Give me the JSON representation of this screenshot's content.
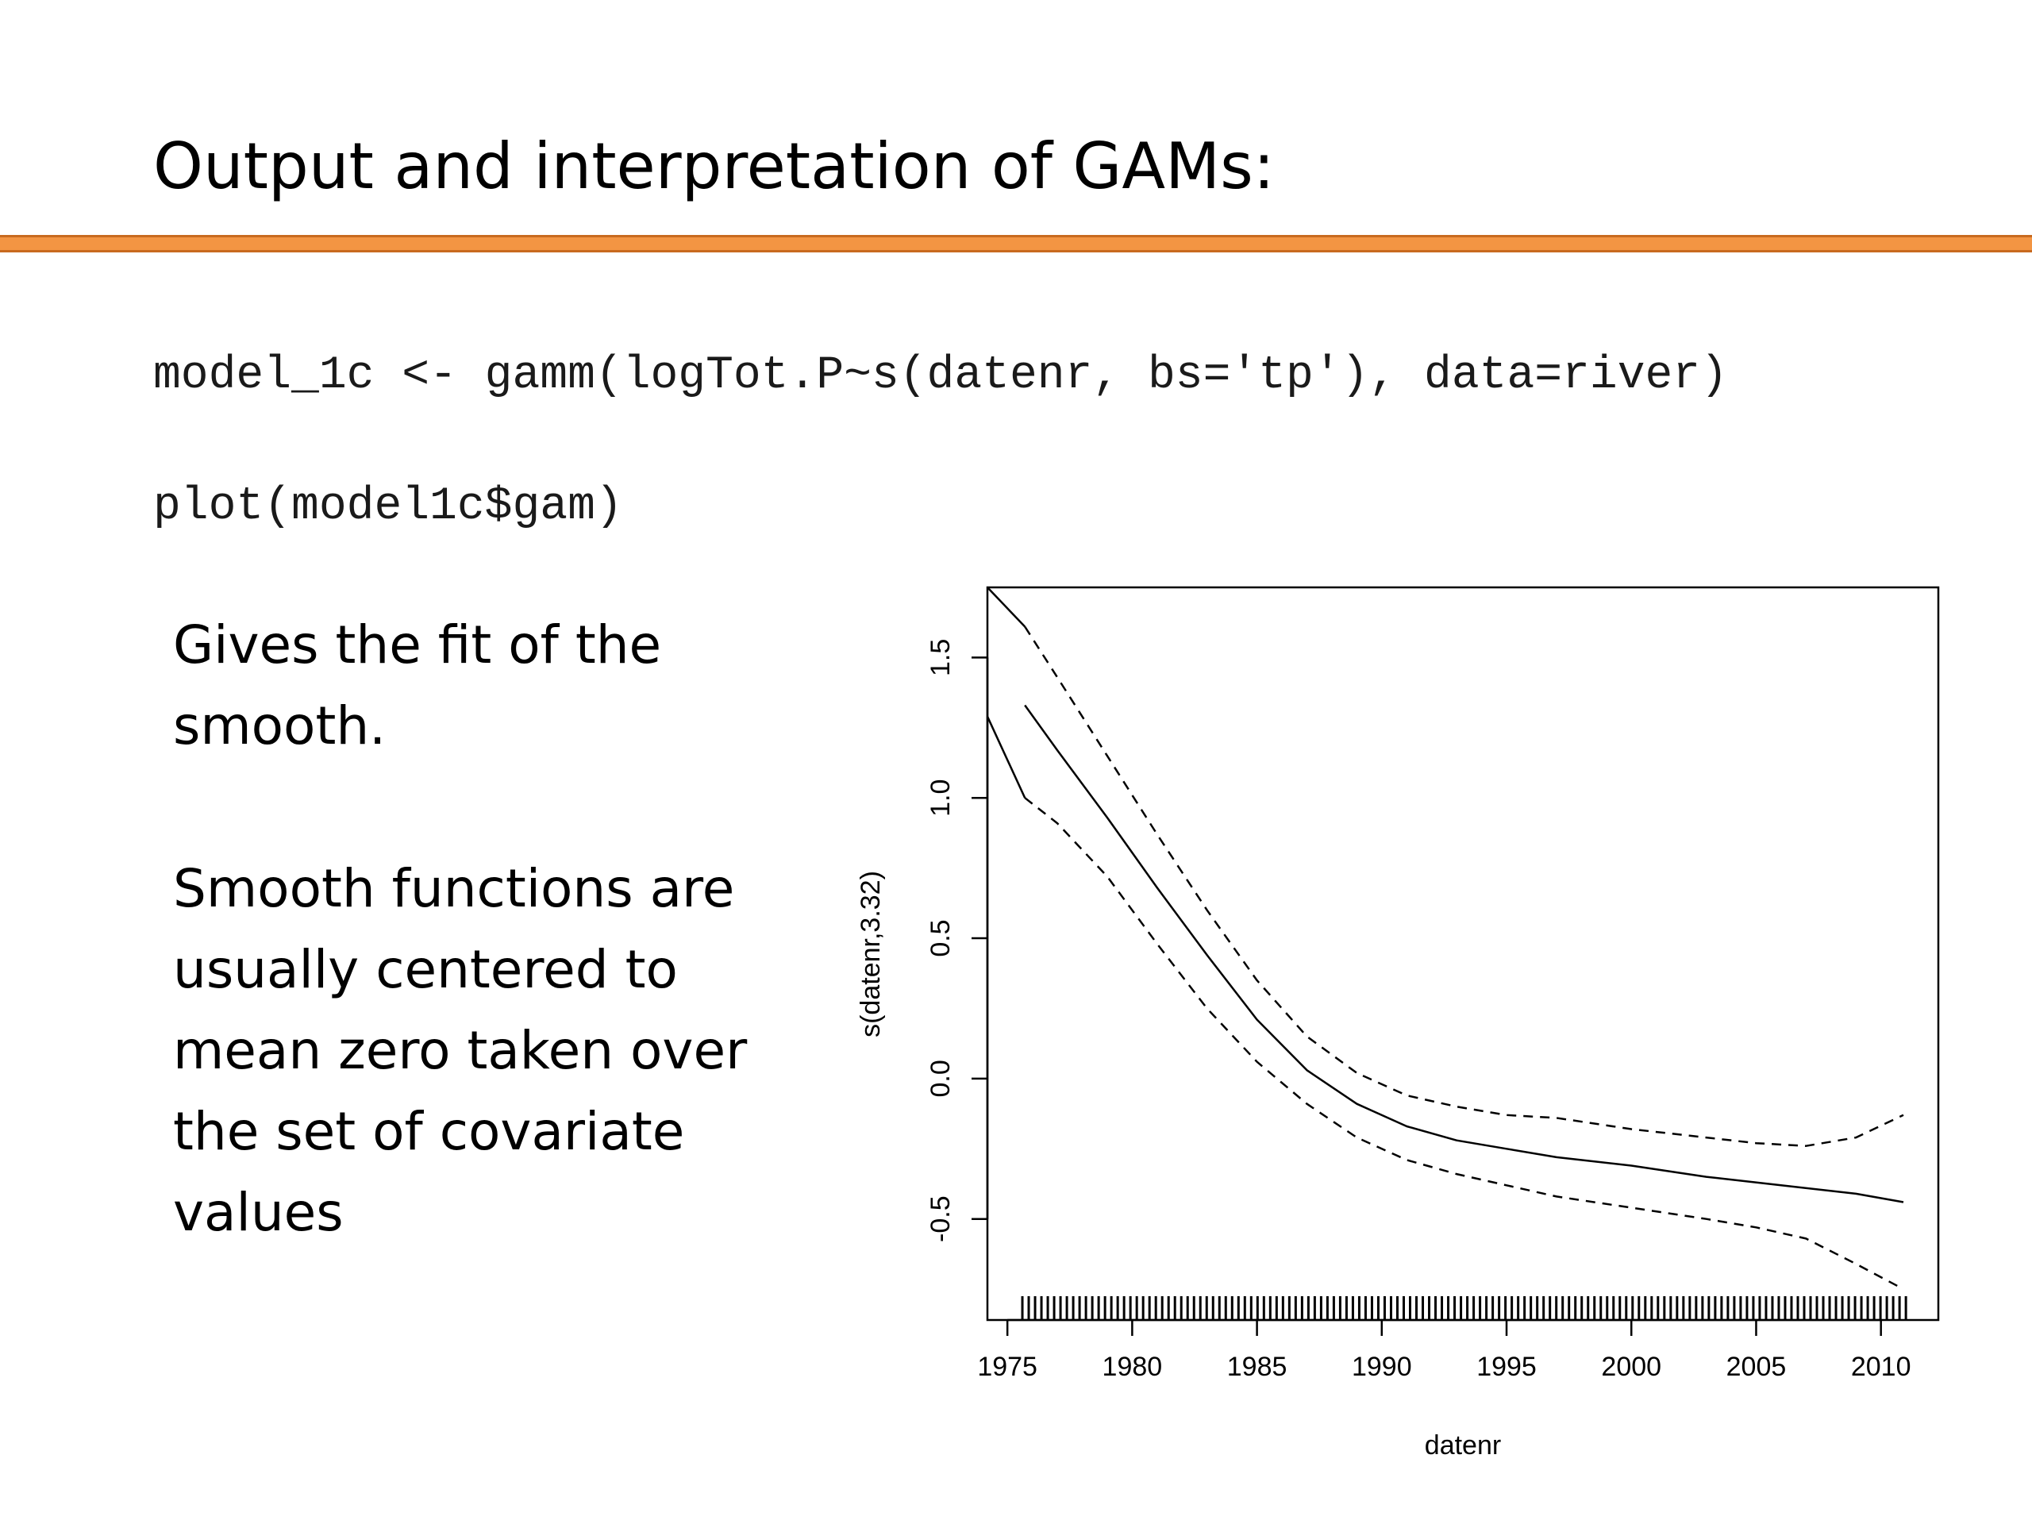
{
  "slide": {
    "title": "Output and interpretation of GAMs:",
    "accent_color": "#f39543",
    "code_lines": [
      "model_1c <- gamm(logTot.P~s(datenr, bs='tp'), data=river)",
      "plot(model1c$gam)"
    ],
    "paragraphs": [
      "Gives the fit of the smooth.",
      "Smooth functions are usually centered to mean zero taken over the set of covariate values"
    ]
  },
  "chart_data": {
    "type": "line",
    "title": "",
    "xlabel": "datenr",
    "ylabel": "s(datenr,3.32)",
    "xlim": [
      1974.2,
      2012.3
    ],
    "ylim": [
      -0.86,
      1.75
    ],
    "x_ticks": [
      1975,
      1980,
      1985,
      1990,
      1995,
      2000,
      2005,
      2010
    ],
    "y_ticks": [
      -0.5,
      0.0,
      0.5,
      1.0,
      1.5
    ],
    "x_tick_labels": [
      "1975",
      "1980",
      "1985",
      "1990",
      "1995",
      "2000",
      "2005",
      "2010"
    ],
    "y_tick_labels": [
      "-0.5",
      "0.0",
      "0.5",
      "1.0",
      "1.5"
    ],
    "grid": false,
    "series": [
      {
        "style": "solid",
        "x": [
          1975.7,
          1977,
          1979,
          1981,
          1983,
          1985,
          1987,
          1989,
          1991,
          1993,
          1995,
          1997,
          2000,
          2003,
          2006,
          2009,
          2010.9
        ],
        "y": [
          1.33,
          1.17,
          0.93,
          0.68,
          0.44,
          0.21,
          0.03,
          -0.09,
          -0.17,
          -0.22,
          -0.25,
          -0.28,
          -0.31,
          -0.35,
          -0.38,
          -0.41,
          -0.44
        ]
      },
      {
        "style": "dashed",
        "x": [
          1975.7,
          1977,
          1979,
          1981,
          1983,
          1985,
          1987,
          1989,
          1991,
          1993,
          1995,
          1997,
          2000,
          2003,
          2005,
          2007,
          2009,
          2010.9
        ],
        "y": [
          1.61,
          1.43,
          1.15,
          0.87,
          0.6,
          0.35,
          0.15,
          0.02,
          -0.06,
          -0.1,
          -0.13,
          -0.14,
          -0.18,
          -0.21,
          -0.23,
          -0.24,
          -0.21,
          -0.13
        ]
      },
      {
        "style": "dashed",
        "x": [
          1975.7,
          1977,
          1979,
          1981,
          1983,
          1985,
          1987,
          1989,
          1991,
          1993,
          1995,
          1997,
          2000,
          2003,
          2005,
          2007,
          2009,
          2010.9
        ],
        "y": [
          1.0,
          0.91,
          0.72,
          0.48,
          0.25,
          0.06,
          -0.09,
          -0.21,
          -0.29,
          -0.34,
          -0.38,
          -0.42,
          -0.46,
          -0.5,
          -0.53,
          -0.57,
          -0.66,
          -0.75
        ]
      }
    ],
    "edge_segments": [
      {
        "style": "solid",
        "x": [
          1974.2,
          1975.7
        ],
        "y": [
          1.75,
          1.61
        ]
      },
      {
        "style": "solid",
        "x": [
          1974.2,
          1975.7
        ],
        "y": [
          1.29,
          1.0
        ]
      }
    ],
    "rug": {
      "from": 1975.6,
      "to": 2011.0,
      "count": 140
    }
  }
}
